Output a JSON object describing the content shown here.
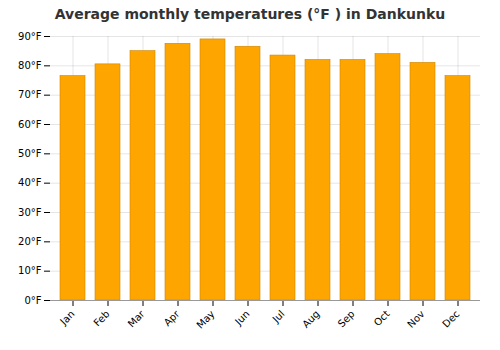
{
  "chart_data": {
    "type": "bar",
    "title": "Average monthly temperatures (°F ) in Dankunku",
    "categories": [
      "Jan",
      "Feb",
      "Mar",
      "Apr",
      "May",
      "Jun",
      "Jul",
      "Aug",
      "Sep",
      "Oct",
      "Nov",
      "Dec"
    ],
    "values": [
      76.5,
      80.5,
      85.0,
      87.5,
      89.0,
      86.5,
      83.5,
      82.0,
      82.0,
      84.0,
      81.0,
      76.5
    ],
    "color": "#FFA500",
    "ylim": [
      0,
      90
    ],
    "yticks": [
      {
        "value": 0,
        "label": "0°F"
      },
      {
        "value": 10,
        "label": "10°F"
      },
      {
        "value": 20,
        "label": "20°F"
      },
      {
        "value": 30,
        "label": "30°F"
      },
      {
        "value": 40,
        "label": "40°F"
      },
      {
        "value": 50,
        "label": "50°F"
      },
      {
        "value": 60,
        "label": "60°F"
      },
      {
        "value": 70,
        "label": "70°F"
      },
      {
        "value": 80,
        "label": "80°F"
      },
      {
        "value": 90,
        "label": "90°F"
      }
    ],
    "grid": true
  }
}
